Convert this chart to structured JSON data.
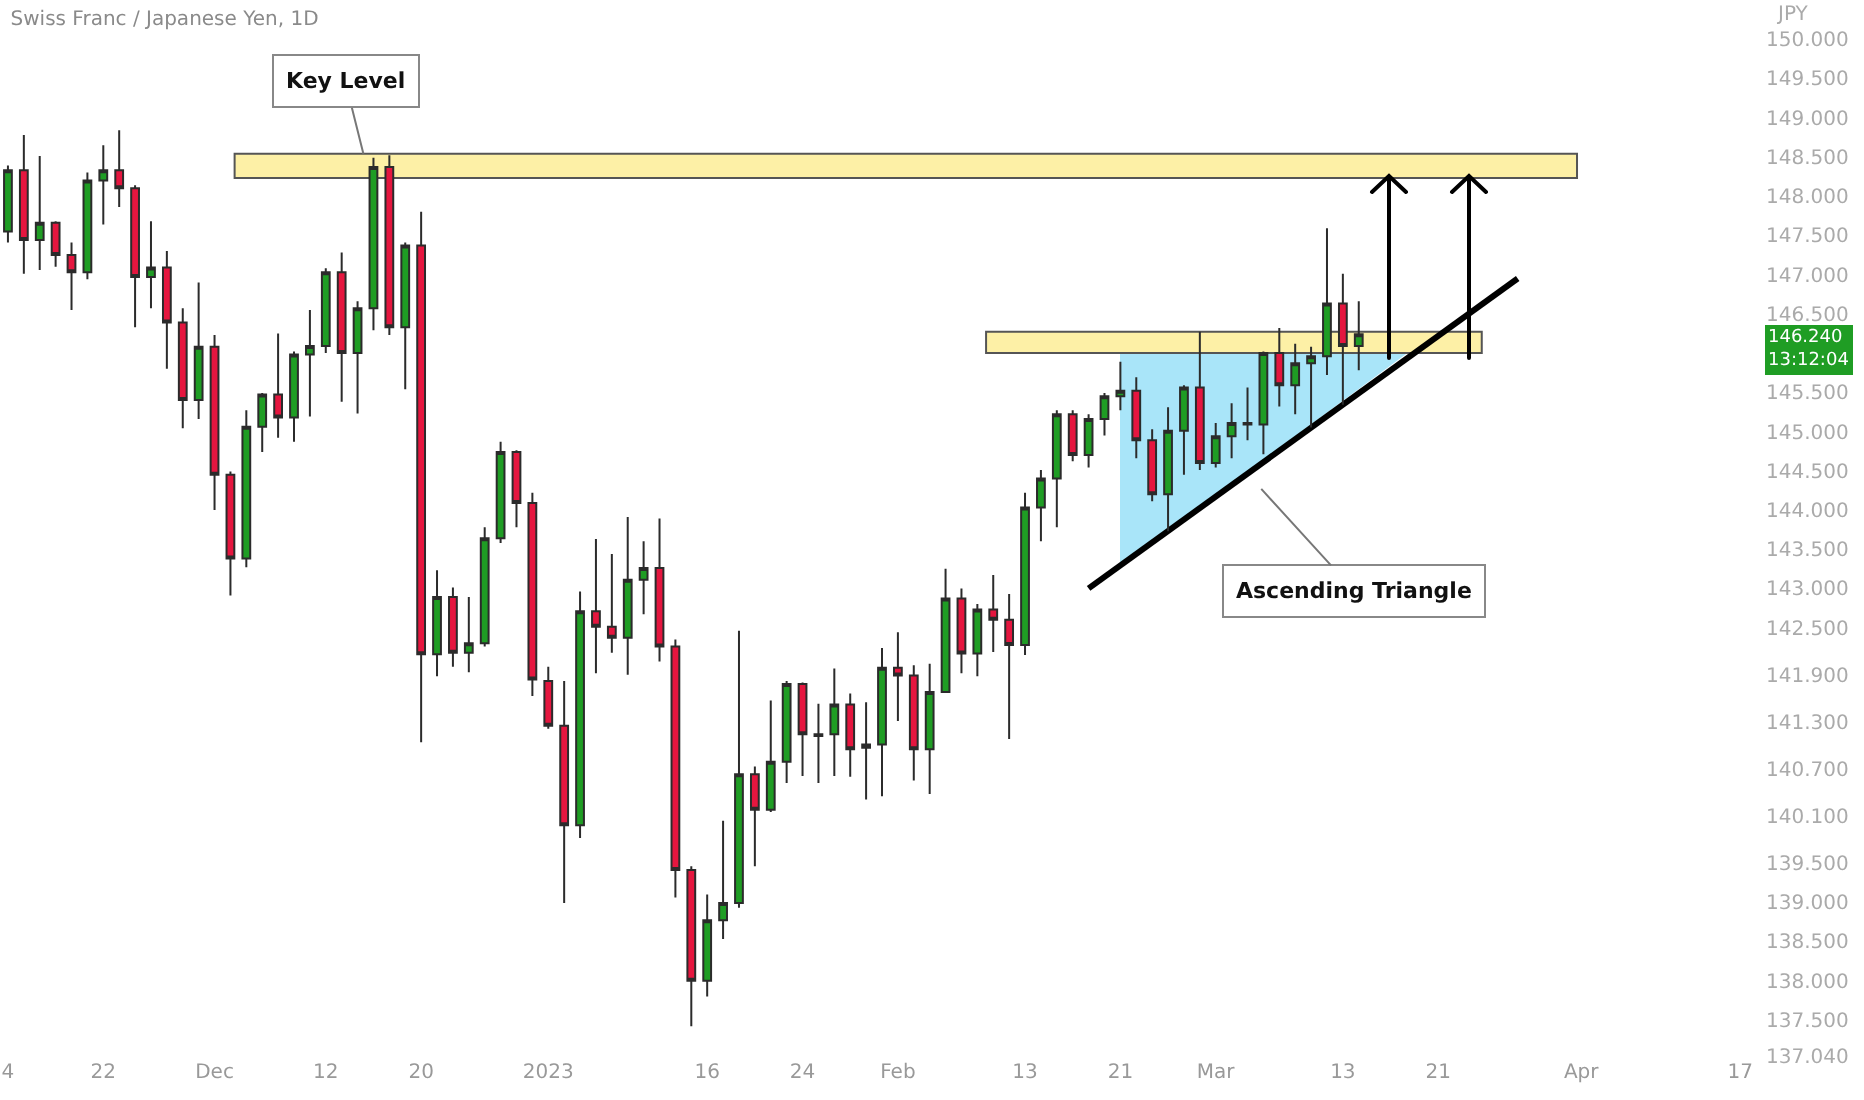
{
  "chart_data": {
    "type": "candlestick",
    "title": "Swiss Franc / Japanese Yen, 1D",
    "ylabel": "JPY",
    "categories": [
      "4",
      null,
      null,
      null,
      null,
      null,
      "22",
      null,
      null,
      null,
      null,
      null,
      null,
      "Dec",
      null,
      null,
      null,
      null,
      null,
      null,
      "12",
      null,
      null,
      null,
      null,
      null,
      "20",
      null,
      null,
      null,
      null,
      null,
      null,
      null,
      "2023",
      null,
      null,
      null,
      null,
      null,
      null,
      null,
      null,
      null,
      "16",
      null,
      null,
      null,
      null,
      null,
      "24",
      null,
      null,
      null,
      null,
      null,
      "Feb",
      null,
      null,
      null,
      null,
      null,
      null,
      null,
      "13",
      null,
      null,
      null,
      null,
      null,
      "21",
      null,
      null,
      null,
      null,
      null,
      "Mar",
      null,
      null,
      null,
      null,
      null,
      null,
      null,
      "13",
      null,
      null,
      null,
      null,
      null,
      "21",
      null,
      null,
      null,
      null,
      null,
      null,
      null,
      null,
      "Apr",
      null,
      null,
      null,
      null,
      null,
      null,
      null,
      null,
      null,
      "17",
      null
    ],
    "series": [
      {
        "type": "line",
        "color": "#000000",
        "values": [
          null,
          null,
          null,
          null,
          null,
          null,
          null,
          null,
          null,
          null,
          null,
          null,
          null,
          null,
          null,
          null,
          null,
          null,
          null,
          null,
          null,
          null,
          null,
          null,
          null,
          null,
          null,
          null,
          null,
          null,
          null,
          null,
          null,
          null,
          null,
          null,
          null,
          null,
          null,
          null,
          null,
          null,
          null,
          null,
          null,
          null,
          null,
          null,
          null,
          null,
          null,
          null,
          null,
          null,
          null,
          null,
          null,
          null,
          null,
          null,
          null,
          null,
          null,
          null,
          null,
          null,
          null,
          null,
          143.0,
          null,
          null,
          null,
          null,
          null,
          null,
          null,
          null,
          null,
          null,
          null,
          null,
          null,
          null,
          null,
          null,
          null,
          null,
          null,
          null,
          null,
          null,
          null,
          null,
          null,
          null,
          146.95,
          null,
          null,
          null,
          null,
          null,
          null,
          null,
          null,
          null,
          null,
          null,
          null,
          null,
          null,
          null
        ]
      },
      {
        "type": "candlestick",
        "ohlc": [
          [
            147.55,
            148.39,
            147.41,
            148.33
          ],
          [
            148.33,
            148.78,
            147.01,
            147.44
          ],
          [
            147.44,
            148.51,
            147.06,
            147.66
          ],
          [
            147.66,
            147.68,
            147.1,
            147.25
          ],
          [
            147.25,
            147.41,
            146.55,
            147.03
          ],
          [
            147.03,
            148.3,
            146.94,
            148.2
          ],
          [
            148.2,
            148.65,
            147.64,
            148.33
          ],
          [
            148.33,
            148.84,
            147.86,
            148.1
          ],
          [
            148.1,
            148.14,
            146.33,
            146.97
          ],
          [
            146.97,
            147.68,
            146.57,
            147.09
          ],
          [
            147.09,
            147.3,
            145.8,
            146.39
          ],
          [
            146.39,
            146.57,
            145.04,
            145.4
          ],
          [
            145.4,
            146.9,
            145.16,
            146.08
          ],
          [
            146.08,
            146.23,
            144.0,
            144.45
          ],
          [
            144.45,
            144.49,
            142.91,
            143.38
          ],
          [
            143.38,
            145.27,
            143.27,
            145.06
          ],
          [
            145.06,
            145.49,
            144.74,
            145.47
          ],
          [
            145.47,
            146.25,
            144.92,
            145.18
          ],
          [
            145.18,
            146.02,
            144.87,
            145.98
          ],
          [
            145.98,
            146.55,
            145.19,
            146.09
          ],
          [
            146.09,
            147.08,
            146.0,
            147.03
          ],
          [
            147.03,
            147.28,
            145.38,
            146.0
          ],
          [
            146.0,
            146.66,
            145.23,
            146.57
          ],
          [
            146.57,
            148.49,
            146.29,
            148.37
          ],
          [
            148.37,
            148.52,
            146.23,
            146.33
          ],
          [
            146.33,
            147.41,
            145.54,
            147.37
          ],
          [
            147.37,
            147.8,
            141.04,
            142.16
          ],
          [
            142.16,
            143.23,
            141.88,
            142.89
          ],
          [
            142.89,
            143.01,
            142.0,
            142.18
          ],
          [
            142.18,
            142.89,
            141.93,
            142.3
          ],
          [
            142.3,
            143.78,
            142.26,
            143.64
          ],
          [
            143.64,
            144.87,
            143.58,
            144.74
          ],
          [
            144.74,
            144.76,
            143.78,
            144.09
          ],
          [
            144.09,
            144.22,
            141.63,
            141.84
          ],
          [
            141.82,
            142.0,
            141.21,
            141.25
          ],
          [
            141.25,
            141.82,
            138.99,
            139.98
          ],
          [
            139.98,
            142.96,
            139.82,
            142.71
          ],
          [
            142.71,
            143.63,
            141.92,
            142.51
          ],
          [
            142.51,
            143.44,
            142.18,
            142.37
          ],
          [
            142.37,
            143.91,
            141.9,
            143.11
          ],
          [
            143.11,
            143.6,
            142.67,
            143.26
          ],
          [
            143.26,
            143.89,
            142.07,
            142.26
          ],
          [
            142.26,
            142.35,
            139.06,
            139.41
          ],
          [
            139.41,
            139.46,
            137.42,
            138.0
          ],
          [
            138.0,
            139.1,
            137.8,
            138.77
          ],
          [
            138.77,
            140.04,
            138.53,
            138.99
          ],
          [
            138.99,
            142.46,
            138.93,
            140.63
          ],
          [
            140.63,
            140.73,
            139.46,
            140.18
          ],
          [
            140.18,
            141.57,
            140.15,
            140.79
          ],
          [
            140.79,
            141.82,
            140.52,
            141.78
          ],
          [
            141.78,
            141.8,
            140.61,
            141.14
          ],
          [
            141.14,
            141.53,
            140.52,
            141.12
          ],
          [
            141.14,
            141.98,
            140.61,
            141.52
          ],
          [
            141.52,
            141.66,
            140.6,
            140.95
          ],
          [
            140.97,
            141.55,
            140.31,
            141.01
          ],
          [
            141.01,
            142.24,
            140.35,
            141.99
          ],
          [
            141.99,
            142.44,
            141.31,
            141.89
          ],
          [
            141.89,
            142.02,
            140.55,
            140.95
          ],
          [
            140.95,
            142.04,
            140.38,
            141.68
          ],
          [
            141.68,
            143.25,
            141.68,
            142.87
          ],
          [
            142.87,
            143.0,
            141.92,
            142.17
          ],
          [
            142.17,
            142.8,
            141.88,
            142.73
          ],
          [
            142.73,
            143.17,
            142.19,
            142.6
          ],
          [
            142.6,
            142.93,
            141.08,
            142.28
          ],
          [
            142.28,
            144.22,
            142.15,
            144.03
          ],
          [
            144.03,
            144.51,
            143.6,
            144.4
          ],
          [
            144.4,
            145.27,
            143.78,
            145.22
          ],
          [
            145.22,
            145.27,
            144.62,
            144.7
          ],
          [
            144.7,
            145.22,
            144.54,
            145.16
          ],
          [
            145.16,
            145.49,
            144.95,
            145.45
          ],
          [
            145.45,
            145.89,
            145.27,
            145.52
          ],
          [
            145.52,
            145.69,
            144.66,
            144.89
          ],
          [
            144.89,
            145.03,
            144.11,
            144.2
          ],
          [
            144.2,
            145.31,
            143.73,
            145.01
          ],
          [
            145.01,
            145.59,
            144.45,
            145.56
          ],
          [
            145.56,
            146.27,
            144.51,
            144.6
          ],
          [
            144.6,
            145.11,
            144.54,
            144.94
          ],
          [
            144.94,
            145.36,
            144.66,
            145.11
          ],
          [
            145.11,
            145.56,
            144.89,
            145.09
          ],
          [
            145.09,
            146.02,
            144.71,
            146.0
          ],
          [
            146.0,
            146.32,
            145.32,
            145.59
          ],
          [
            145.59,
            146.12,
            145.22,
            145.87
          ],
          [
            145.87,
            146.08,
            145.05,
            145.96
          ],
          [
            145.96,
            147.59,
            145.72,
            146.63
          ],
          [
            146.63,
            147.01,
            145.34,
            146.09
          ],
          [
            146.09,
            146.66,
            145.78,
            146.24
          ],
          null,
          null,
          null,
          null,
          null,
          null,
          null,
          null,
          null,
          null,
          null,
          null,
          null,
          null,
          null,
          null,
          null,
          null,
          null,
          null,
          null,
          null,
          null,
          null,
          null
        ]
      }
    ],
    "bands": [
      {
        "axis": "y",
        "from": 148.23,
        "to": 148.54,
        "color": "#fdf0a6"
      },
      {
        "axis": "y",
        "from": 146.0,
        "to": 146.27,
        "color": "#fdf0a6"
      }
    ],
    "annotations": [
      {
        "text": "Key Level",
        "y": 148.54
      },
      "Ascending Triangle",
      "146.240\n13:12:04"
    ],
    "ylim": [
      137.04,
      150.5
    ],
    "yticks": [
      {
        "value": 150,
        "label": "150.000"
      },
      {
        "value": 149.5,
        "label": "149.500"
      },
      {
        "value": 149,
        "label": "149.000"
      },
      {
        "value": 148.5,
        "label": "148.500"
      },
      {
        "value": 148,
        "label": "148.000"
      },
      {
        "value": 147.5,
        "label": "147.500"
      },
      {
        "value": 147,
        "label": "147.000"
      },
      {
        "value": 146.5,
        "label": "146.500"
      },
      {
        "value": 145.5,
        "label": "145.500"
      },
      {
        "value": 145,
        "label": "145.000"
      },
      {
        "value": 144.5,
        "label": "144.500"
      },
      {
        "value": 144,
        "label": "144.000"
      },
      {
        "value": 143.5,
        "label": "143.500"
      },
      {
        "value": 143,
        "label": "143.000"
      },
      {
        "value": 142.5,
        "label": "142.500"
      },
      {
        "value": 141.9,
        "label": "141.900"
      },
      {
        "value": 141.3,
        "label": "141.300"
      },
      {
        "value": 140.7,
        "label": "140.700"
      },
      {
        "value": 140.1,
        "label": "140.100"
      },
      {
        "value": 139.5,
        "label": "139.500"
      },
      {
        "value": 139,
        "label": "139.000"
      },
      {
        "value": 138.5,
        "label": "138.500"
      },
      {
        "value": 138,
        "label": "138.000"
      },
      {
        "value": 137.5,
        "label": "137.500"
      },
      {
        "value": 137.04,
        "label": "137.040"
      }
    ]
  }
}
